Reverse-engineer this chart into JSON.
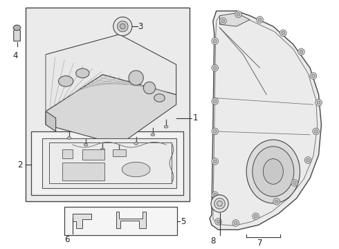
{
  "background": "#ffffff",
  "line_color": "#555555",
  "dark_line": "#333333",
  "gray_bg": "#ececec",
  "light_bg": "#f5f5f5"
}
